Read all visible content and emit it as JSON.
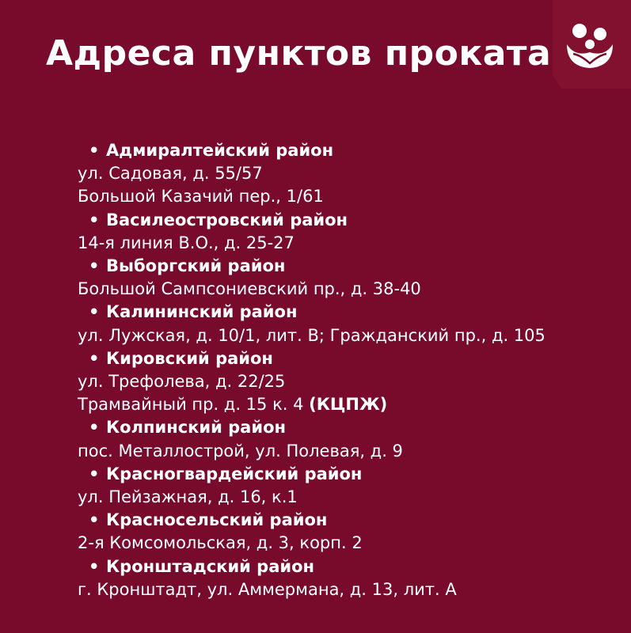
{
  "title": "Адреса пунктов проката",
  "logo_icon": "family-in-hands-icon",
  "districts": [
    {
      "name": "Адмиралтейский район",
      "addresses": [
        "ул. Садовая, д. 55/57",
        "Большой Казачий пер., 1/61"
      ]
    },
    {
      "name": "Василеостровский район",
      "addresses": [
        "14-я линия В.О., д. 25-27"
      ]
    },
    {
      "name": "Выборгский район",
      "addresses": [
        "Большой Сампсониевский пр., д. 38-40"
      ]
    },
    {
      "name": "Калининский район",
      "addresses": [
        "ул. Лужская, д. 10/1, лит. В; Гражданский пр., д. 105"
      ]
    },
    {
      "name": "Кировский район",
      "addresses": [
        "ул. Трефолева, д. 22/25",
        "Трамвайный пр. д. 15 к. 4"
      ],
      "note": "(КЦПЖ)"
    },
    {
      "name": "Колпинский район",
      "addresses": [
        "пос. Металлострой, ул. Полевая, д. 9"
      ]
    },
    {
      "name": "Красногвардейский район",
      "addresses": [
        "ул. Пейзажная, д. 16, к.1"
      ]
    },
    {
      "name": "Красносельский район",
      "addresses": [
        "2-я Комсомольская, д. 3, корп. 2"
      ]
    },
    {
      "name": "Кронштадский район",
      "addresses": [
        "г. Кронштадт, ул. Аммермана, д. 13, лит. А"
      ]
    }
  ]
}
